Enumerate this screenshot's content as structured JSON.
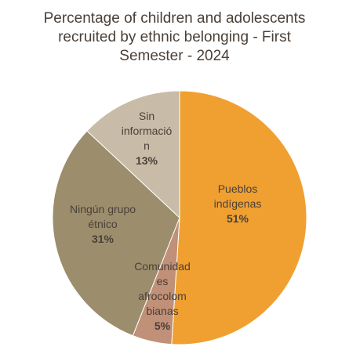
{
  "chart_data": {
    "type": "pie",
    "title_lines": [
      "Percentage of children and adolescents",
      "recruited by ethnic belonging - First",
      "Semester - 2024"
    ],
    "slices": [
      {
        "label_lines": [
          "Pueblos",
          "indígenas"
        ],
        "value": 51,
        "value_label": "51%",
        "color": "#f0a030"
      },
      {
        "label_lines": [
          "Comunidad",
          "es",
          "afrocolom",
          "bianas"
        ],
        "value": 5,
        "value_label": "5%",
        "color": "#c09078"
      },
      {
        "label_lines": [
          "Ningún grupo",
          "étnico"
        ],
        "value": 31,
        "value_label": "31%",
        "color": "#9c8e6c"
      },
      {
        "label_lines": [
          "Sin",
          "informació",
          "n"
        ],
        "value": 13,
        "value_label": "13%",
        "color": "#c8bca8"
      }
    ]
  }
}
